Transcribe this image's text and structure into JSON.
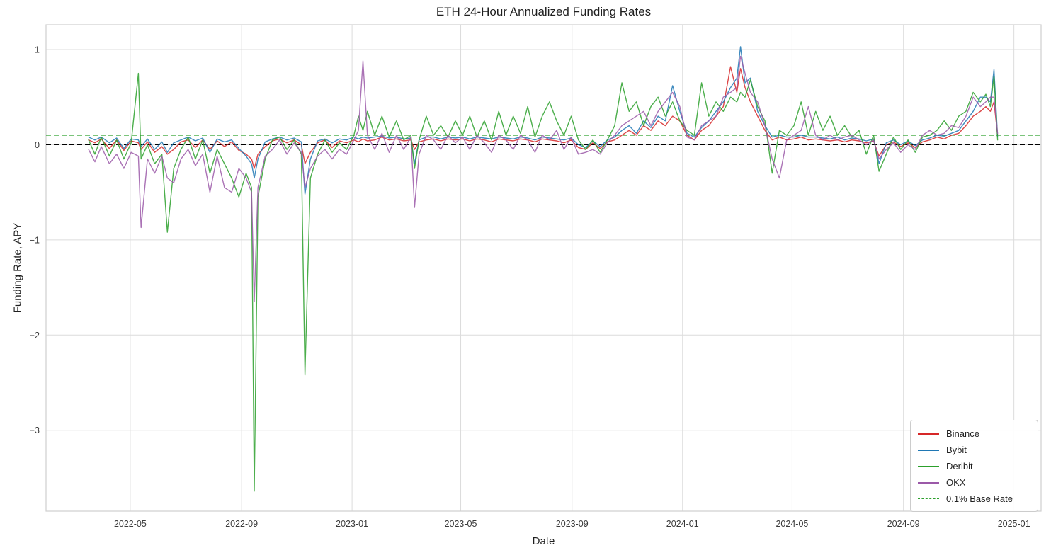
{
  "title": "ETH 24-Hour Annualized Funding Rates",
  "chart_data": {
    "type": "line",
    "title": "ETH 24-Hour Annualized Funding Rates",
    "xlabel": "Date",
    "ylabel": "Funding Rate, APY",
    "grid": true,
    "legend_position": "lower right",
    "x_ticks": [
      "2022-05",
      "2022-09",
      "2023-01",
      "2023-05",
      "2023-09",
      "2024-01",
      "2024-05",
      "2024-09",
      "2025-01"
    ],
    "y_ticks": [
      1,
      0,
      -1,
      -2,
      -3
    ],
    "xlim": [
      "2022-01-28",
      "2025-01-31"
    ],
    "ylim": [
      -3.85,
      1.26
    ],
    "colors": {
      "grid": "#dcdcdc",
      "spine": "#cfcfcf",
      "tick_text": "#3a3a3a",
      "zero_line": "#000000",
      "base_rate_line": "#2ca02c"
    },
    "zero_line": {
      "value": 0.0,
      "color": "#000000",
      "style": "dashed"
    },
    "base_rate": {
      "label": "0.1% Base Rate",
      "value": 0.1,
      "color": "#2ca02c",
      "style": "dashed"
    },
    "dates": [
      "2022-03-16",
      "2022-03-23",
      "2022-03-30",
      "2022-04-08",
      "2022-04-16",
      "2022-04-24",
      "2022-05-02",
      "2022-05-10",
      "2022-05-13",
      "2022-05-20",
      "2022-05-28",
      "2022-06-05",
      "2022-06-11",
      "2022-06-18",
      "2022-06-26",
      "2022-07-04",
      "2022-07-12",
      "2022-07-20",
      "2022-07-28",
      "2022-08-05",
      "2022-08-13",
      "2022-08-21",
      "2022-08-29",
      "2022-09-06",
      "2022-09-12",
      "2022-09-15",
      "2022-09-19",
      "2022-09-27",
      "2022-10-05",
      "2022-10-13",
      "2022-10-21",
      "2022-10-29",
      "2022-11-06",
      "2022-11-10",
      "2022-11-16",
      "2022-11-24",
      "2022-12-02",
      "2022-12-10",
      "2022-12-18",
      "2022-12-26",
      "2023-01-03",
      "2023-01-08",
      "2023-01-13",
      "2023-01-18",
      "2023-01-26",
      "2023-02-03",
      "2023-02-11",
      "2023-02-19",
      "2023-02-27",
      "2023-03-07",
      "2023-03-11",
      "2023-03-16",
      "2023-03-24",
      "2023-04-01",
      "2023-04-09",
      "2023-04-17",
      "2023-04-25",
      "2023-05-03",
      "2023-05-11",
      "2023-05-19",
      "2023-05-27",
      "2023-06-04",
      "2023-06-12",
      "2023-06-20",
      "2023-06-28",
      "2023-07-06",
      "2023-07-14",
      "2023-07-22",
      "2023-07-30",
      "2023-08-07",
      "2023-08-15",
      "2023-08-23",
      "2023-08-31",
      "2023-09-08",
      "2023-09-16",
      "2023-09-24",
      "2023-10-02",
      "2023-10-10",
      "2023-10-18",
      "2023-10-26",
      "2023-11-03",
      "2023-11-11",
      "2023-11-19",
      "2023-11-27",
      "2023-12-05",
      "2023-12-13",
      "2023-12-21",
      "2023-12-29",
      "2024-01-06",
      "2024-01-14",
      "2024-01-22",
      "2024-01-30",
      "2024-02-07",
      "2024-02-15",
      "2024-02-23",
      "2024-03-01",
      "2024-03-05",
      "2024-03-10",
      "2024-03-16",
      "2024-03-24",
      "2024-04-01",
      "2024-04-09",
      "2024-04-17",
      "2024-04-25",
      "2024-05-03",
      "2024-05-11",
      "2024-05-19",
      "2024-05-27",
      "2024-06-04",
      "2024-06-12",
      "2024-06-20",
      "2024-06-28",
      "2024-07-06",
      "2024-07-14",
      "2024-07-22",
      "2024-07-30",
      "2024-08-05",
      "2024-08-13",
      "2024-08-21",
      "2024-08-29",
      "2024-09-06",
      "2024-09-14",
      "2024-09-22",
      "2024-09-30",
      "2024-10-08",
      "2024-10-16",
      "2024-10-24",
      "2024-11-01",
      "2024-11-09",
      "2024-11-17",
      "2024-11-25",
      "2024-12-01",
      "2024-12-06",
      "2024-12-10",
      "2024-12-14"
    ],
    "series": [
      {
        "name": "Binance",
        "color": "#d62728",
        "values": [
          0.05,
          0.02,
          0.06,
          -0.04,
          0.05,
          -0.06,
          0.04,
          0.02,
          -0.05,
          0.03,
          -0.08,
          -0.02,
          -0.1,
          -0.05,
          0.03,
          0.05,
          -0.03,
          0.05,
          -0.05,
          0.04,
          -0.02,
          0.03,
          -0.06,
          -0.1,
          -0.15,
          -0.25,
          -0.1,
          -0.02,
          0.04,
          0.06,
          0.02,
          0.05,
          0.0,
          -0.2,
          -0.08,
          0.02,
          0.05,
          -0.03,
          0.04,
          0.02,
          0.05,
          0.03,
          0.06,
          0.04,
          0.05,
          0.08,
          0.05,
          0.06,
          0.04,
          0.05,
          -0.05,
          0.03,
          0.05,
          0.06,
          0.04,
          0.06,
          0.05,
          0.06,
          0.04,
          0.06,
          0.05,
          0.03,
          0.06,
          0.05,
          0.04,
          0.06,
          0.05,
          0.03,
          0.06,
          0.05,
          0.04,
          0.02,
          0.05,
          -0.03,
          -0.05,
          0.02,
          -0.04,
          0.03,
          0.05,
          0.1,
          0.15,
          0.1,
          0.2,
          0.15,
          0.25,
          0.2,
          0.3,
          0.25,
          0.1,
          0.05,
          0.15,
          0.2,
          0.3,
          0.4,
          0.82,
          0.55,
          0.8,
          0.6,
          0.45,
          0.3,
          0.15,
          0.05,
          0.08,
          0.05,
          0.06,
          0.08,
          0.05,
          0.06,
          0.05,
          0.04,
          0.05,
          0.03,
          0.05,
          0.04,
          0.02,
          0.04,
          -0.12,
          0.0,
          0.03,
          -0.02,
          0.02,
          -0.03,
          0.03,
          0.05,
          0.08,
          0.06,
          0.1,
          0.12,
          0.2,
          0.3,
          0.35,
          0.4,
          0.35,
          0.45,
          0.1
        ]
      },
      {
        "name": "Bybit",
        "color": "#1f77b4",
        "values": [
          0.08,
          0.05,
          0.08,
          0.02,
          0.07,
          -0.04,
          0.06,
          0.05,
          -0.02,
          0.06,
          -0.05,
          0.03,
          -0.08,
          0.02,
          0.05,
          0.08,
          0.04,
          0.07,
          -0.08,
          0.06,
          0.03,
          0.05,
          -0.04,
          -0.12,
          -0.2,
          -0.35,
          -0.15,
          0.03,
          0.06,
          0.08,
          0.05,
          0.07,
          0.03,
          -0.52,
          -0.15,
          0.04,
          0.06,
          0.02,
          0.06,
          0.05,
          0.08,
          0.06,
          0.08,
          0.07,
          0.08,
          0.09,
          0.07,
          0.08,
          0.06,
          0.07,
          -0.2,
          0.05,
          0.08,
          0.08,
          0.06,
          0.08,
          0.07,
          0.08,
          0.06,
          0.08,
          0.07,
          0.06,
          0.08,
          0.07,
          0.06,
          0.08,
          0.07,
          0.05,
          0.08,
          0.07,
          0.06,
          0.05,
          0.07,
          0.0,
          -0.03,
          0.04,
          -0.02,
          0.05,
          0.08,
          0.15,
          0.2,
          0.12,
          0.25,
          0.18,
          0.3,
          0.25,
          0.62,
          0.35,
          0.12,
          0.08,
          0.18,
          0.25,
          0.35,
          0.45,
          0.6,
          0.7,
          1.03,
          0.65,
          0.7,
          0.35,
          0.2,
          0.08,
          0.1,
          0.08,
          0.08,
          0.1,
          0.08,
          0.08,
          0.07,
          0.06,
          0.08,
          0.05,
          0.07,
          0.06,
          0.04,
          0.06,
          -0.2,
          0.02,
          0.05,
          0.0,
          0.04,
          -0.01,
          0.05,
          0.07,
          0.1,
          0.09,
          0.12,
          0.15,
          0.25,
          0.35,
          0.5,
          0.5,
          0.45,
          0.79,
          0.08
        ]
      },
      {
        "name": "Deribit",
        "color": "#2ca02c",
        "values": [
          0.05,
          -0.1,
          0.08,
          -0.12,
          0.05,
          -0.15,
          0.02,
          0.75,
          -0.15,
          0.0,
          -0.2,
          -0.1,
          -0.92,
          -0.25,
          -0.05,
          0.08,
          -0.15,
          0.05,
          -0.3,
          -0.05,
          -0.2,
          -0.35,
          -0.55,
          -0.3,
          -0.45,
          -3.64,
          -0.55,
          -0.15,
          0.05,
          0.08,
          -0.05,
          0.05,
          -0.1,
          -2.42,
          -0.35,
          -0.1,
          0.05,
          -0.08,
          0.02,
          -0.05,
          0.1,
          0.3,
          0.15,
          0.35,
          0.1,
          0.3,
          0.08,
          0.25,
          0.05,
          0.1,
          -0.25,
          0.05,
          0.3,
          0.1,
          0.2,
          0.08,
          0.25,
          0.1,
          0.3,
          0.08,
          0.25,
          0.05,
          0.35,
          0.1,
          0.3,
          0.12,
          0.4,
          0.08,
          0.3,
          0.45,
          0.25,
          0.1,
          0.3,
          0.05,
          -0.05,
          0.05,
          -0.08,
          0.05,
          0.2,
          0.65,
          0.35,
          0.45,
          0.2,
          0.4,
          0.5,
          0.3,
          0.45,
          0.25,
          0.15,
          0.1,
          0.65,
          0.3,
          0.45,
          0.35,
          0.5,
          0.45,
          0.55,
          0.5,
          0.68,
          0.4,
          0.25,
          -0.3,
          0.15,
          0.1,
          0.2,
          0.45,
          0.1,
          0.35,
          0.15,
          0.3,
          0.1,
          0.2,
          0.08,
          0.15,
          -0.1,
          0.1,
          -0.28,
          -0.1,
          0.08,
          -0.05,
          0.05,
          -0.08,
          0.08,
          0.1,
          0.15,
          0.25,
          0.15,
          0.3,
          0.35,
          0.55,
          0.45,
          0.53,
          0.4,
          0.72,
          0.05
        ]
      },
      {
        "name": "OKX",
        "color": "#9b59a8",
        "values": [
          -0.05,
          -0.18,
          -0.02,
          -0.2,
          -0.1,
          -0.25,
          -0.08,
          -0.12,
          -0.87,
          -0.15,
          -0.3,
          -0.12,
          -0.35,
          -0.4,
          -0.15,
          -0.05,
          -0.22,
          -0.1,
          -0.5,
          -0.12,
          -0.45,
          -0.5,
          -0.25,
          -0.35,
          -0.5,
          -1.65,
          -0.45,
          -0.12,
          -0.05,
          0.05,
          -0.1,
          0.02,
          -0.08,
          -0.45,
          -0.25,
          -0.12,
          -0.05,
          -0.15,
          -0.05,
          -0.1,
          0.05,
          0.15,
          0.88,
          0.1,
          -0.05,
          0.12,
          -0.08,
          0.1,
          -0.05,
          0.08,
          -0.66,
          -0.1,
          0.1,
          0.05,
          -0.05,
          0.1,
          0.02,
          0.08,
          -0.05,
          0.1,
          0.02,
          -0.08,
          0.1,
          0.05,
          -0.05,
          0.1,
          0.05,
          -0.08,
          0.1,
          0.05,
          0.15,
          -0.05,
          0.08,
          -0.1,
          -0.08,
          -0.05,
          -0.1,
          0.02,
          0.1,
          0.2,
          0.25,
          0.3,
          0.35,
          0.2,
          0.35,
          0.45,
          0.55,
          0.4,
          0.08,
          0.05,
          0.2,
          0.25,
          0.3,
          0.5,
          0.55,
          0.6,
          0.93,
          0.75,
          0.55,
          0.45,
          0.2,
          -0.15,
          -0.35,
          0.05,
          0.1,
          0.15,
          0.4,
          0.1,
          0.05,
          0.1,
          0.05,
          0.08,
          0.1,
          0.05,
          0.0,
          0.05,
          -0.15,
          -0.05,
          0.02,
          -0.08,
          0.0,
          -0.05,
          0.1,
          0.15,
          0.1,
          0.12,
          0.2,
          0.18,
          0.3,
          0.5,
          0.4,
          0.45,
          0.5,
          0.5,
          0.12
        ]
      }
    ]
  }
}
